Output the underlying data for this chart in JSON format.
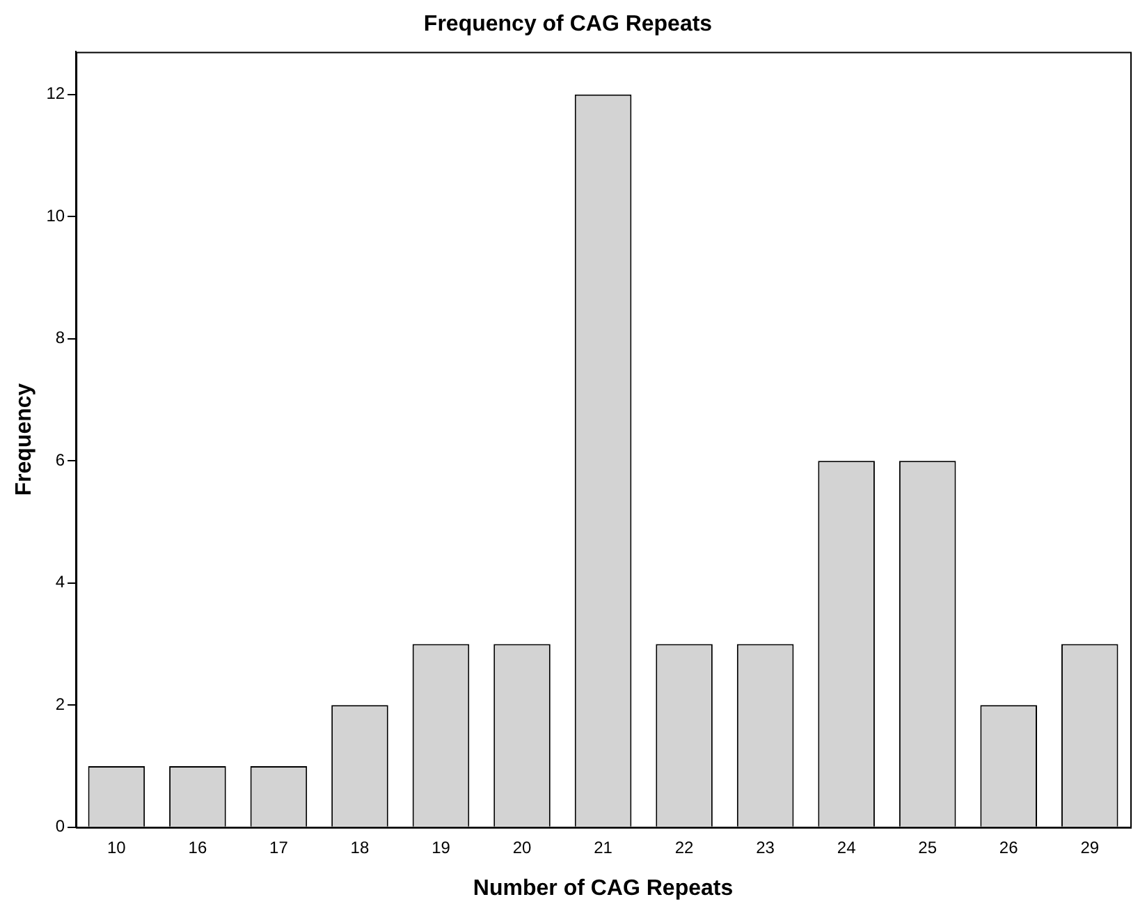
{
  "chart_data": {
    "type": "bar",
    "title": "Frequency of CAG Repeats",
    "xlabel": "Number of CAG Repeats",
    "ylabel": "Frequency",
    "categories": [
      "10",
      "16",
      "17",
      "18",
      "19",
      "20",
      "21",
      "22",
      "23",
      "24",
      "25",
      "26",
      "29"
    ],
    "values": [
      1,
      1,
      1,
      2,
      3,
      3,
      12,
      3,
      3,
      6,
      6,
      2,
      3
    ],
    "color": "#d3d3d3",
    "ylim": [
      0,
      12.7
    ],
    "yticks": [
      0,
      2,
      4,
      6,
      8,
      10,
      12
    ],
    "grid": false
  }
}
